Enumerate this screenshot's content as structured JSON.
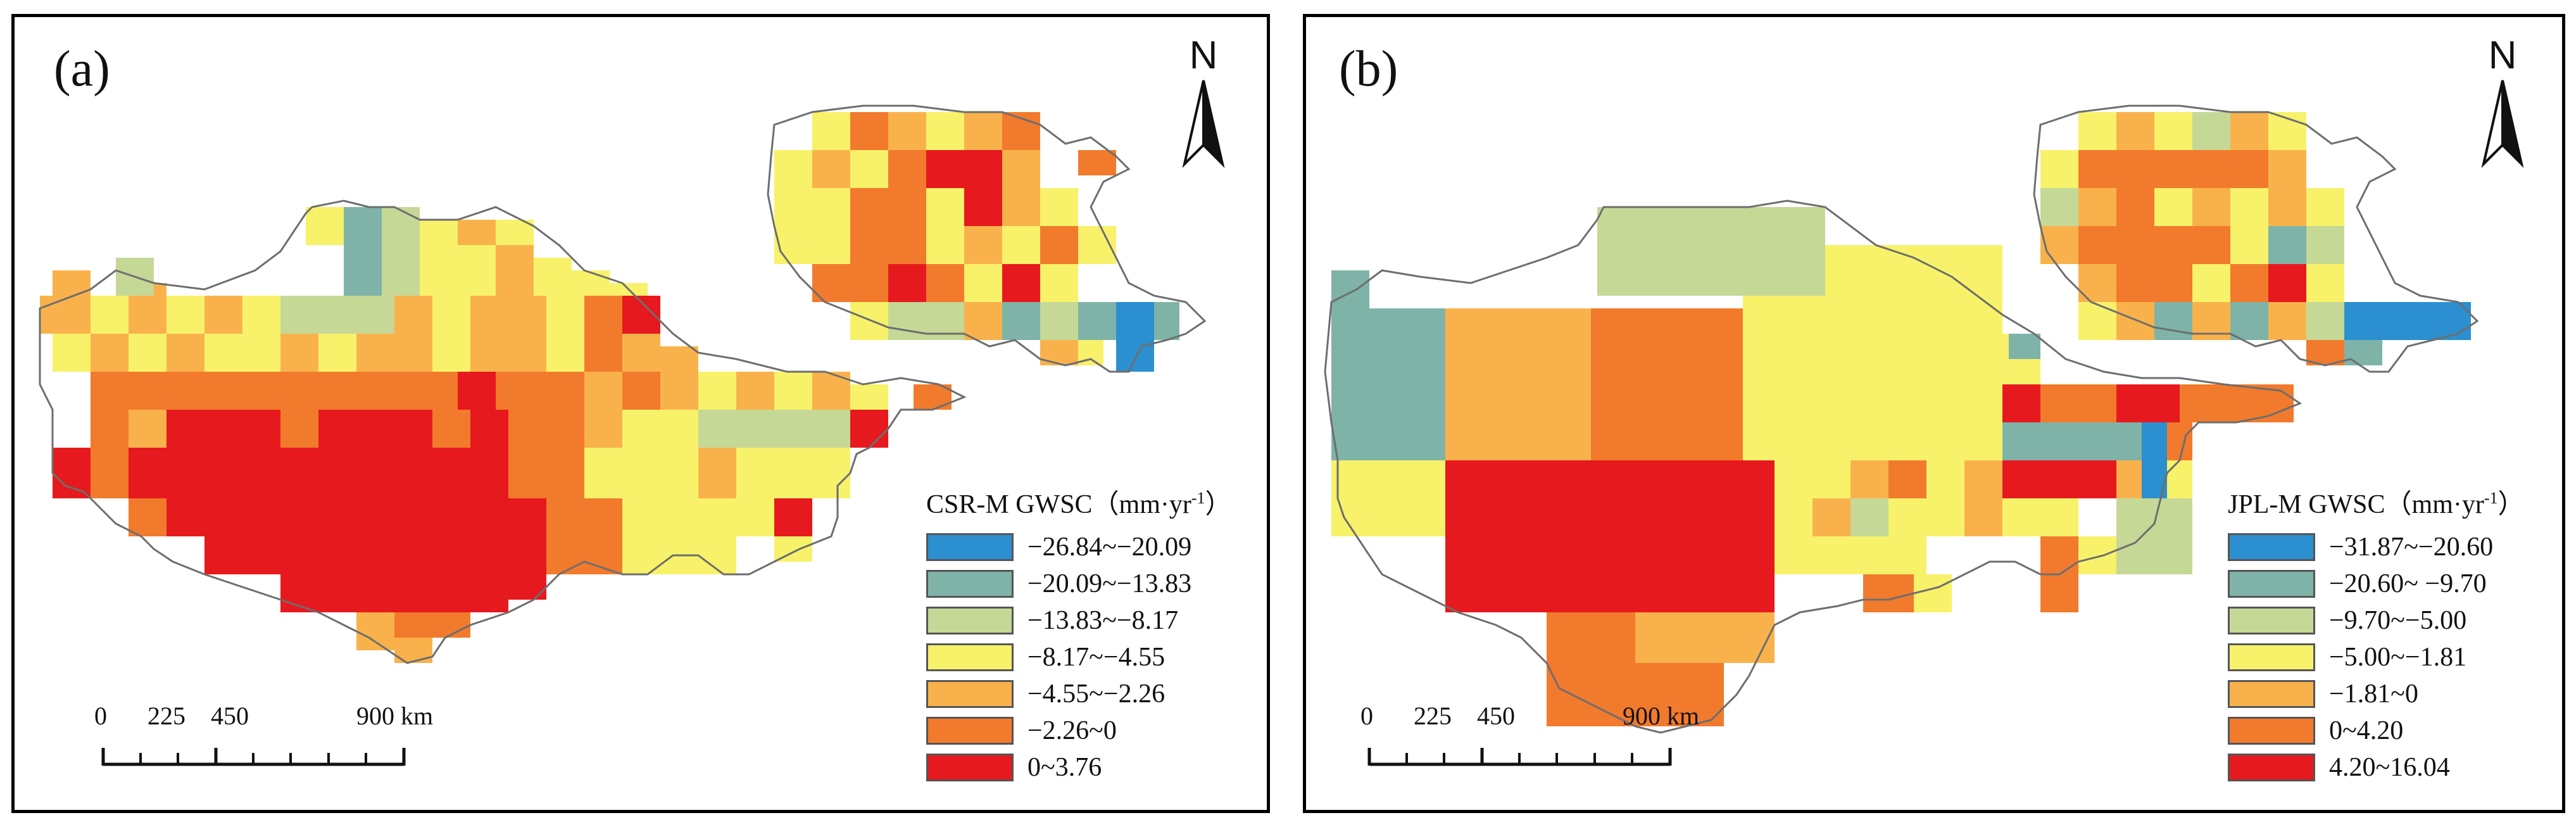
{
  "figure": {
    "panels": [
      {
        "id": "a",
        "label": "(a)",
        "north_label": "N",
        "legend_title": "CSR-M GWSC（mm·yr",
        "legend_unit_sup": "-1",
        "legend_title_close": "）",
        "legend": [
          {
            "label": "−26.84~−20.09",
            "color": "#2b8fd0"
          },
          {
            "label": "−20.09~−13.83",
            "color": "#7fb3a8"
          },
          {
            "label": "−13.83~−8.17",
            "color": "#c5d896"
          },
          {
            "label": "−8.17~−4.55",
            "color": "#f7f26a"
          },
          {
            "label": "−4.55~−2.26",
            "color": "#f9b24b"
          },
          {
            "label": "−2.26~0",
            "color": "#f27a2c"
          },
          {
            "label": "0~3.76",
            "color": "#e6191e"
          }
        ],
        "scalebar": {
          "ticks": [
            "0",
            "225",
            "450",
            "900 km"
          ]
        }
      },
      {
        "id": "b",
        "label": "(b)",
        "north_label": "N",
        "legend_title": "JPL-M GWSC（mm·yr",
        "legend_unit_sup": "-1",
        "legend_title_close": "）",
        "legend": [
          {
            "label": "−31.87~−20.60",
            "color": "#2b8fd0"
          },
          {
            "label": "−20.60~ −9.70",
            "color": "#7fb3a8"
          },
          {
            "label": "−9.70~−5.00",
            "color": "#c5d896"
          },
          {
            "label": "−5.00~−1.81",
            "color": "#f7f26a"
          },
          {
            "label": "−1.81~0",
            "color": "#f9b24b"
          },
          {
            "label": "0~4.20",
            "color": "#f27a2c"
          },
          {
            "label": "4.20~16.04",
            "color": "#e6191e"
          }
        ],
        "scalebar": {
          "ticks": [
            "0",
            "225",
            "450",
            "900 km"
          ]
        }
      }
    ]
  }
}
